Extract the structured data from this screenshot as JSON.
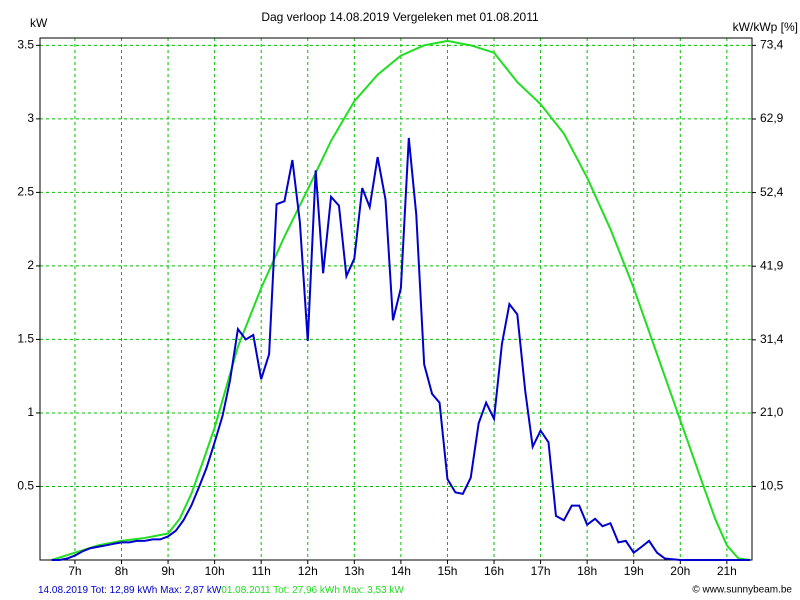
{
  "chart_data": {
    "type": "line",
    "title": "Dag  verloop 14.08.2019   Vergeleken met 01.08.2011",
    "ylabel": "kW",
    "y2label": "kW/kWp [%]",
    "credit": "© www.sunnybeam.be",
    "xlim": [
      6.25,
      21.54
    ],
    "xticks": [
      {
        "value": 7,
        "label": "7h"
      },
      {
        "value": 8,
        "label": "8h"
      },
      {
        "value": 9,
        "label": "9h"
      },
      {
        "value": 10,
        "label": "10h"
      },
      {
        "value": 11,
        "label": "11h"
      },
      {
        "value": 12,
        "label": "12h"
      },
      {
        "value": 13,
        "label": "13h"
      },
      {
        "value": 14,
        "label": "14h"
      },
      {
        "value": 15,
        "label": "15h"
      },
      {
        "value": 16,
        "label": "16h"
      },
      {
        "value": 17,
        "label": "17h"
      },
      {
        "value": 18,
        "label": "18h"
      },
      {
        "value": 19,
        "label": "19h"
      },
      {
        "value": 20,
        "label": "20h"
      },
      {
        "value": 21,
        "label": "21h"
      }
    ],
    "ylim": [
      0,
      3.55
    ],
    "yticks": [
      0.5,
      1,
      1.5,
      2,
      2.5,
      3,
      3.5
    ],
    "y2lim": [
      0,
      74.45
    ],
    "y2ticks": [
      {
        "value": 10.5,
        "label": "10,5"
      },
      {
        "value": 21.0,
        "label": "21,0"
      },
      {
        "value": 31.4,
        "label": "31,4"
      },
      {
        "value": 41.9,
        "label": "41,9"
      },
      {
        "value": 52.4,
        "label": "52,4"
      },
      {
        "value": 62.9,
        "label": "62,9"
      },
      {
        "value": 73.4,
        "label": "73,4"
      }
    ],
    "grid": true,
    "series": [
      {
        "name": "14.08.2019",
        "summary": " Tot: 12,89 kWh Max: 2,87 kW",
        "color": "#0000cc",
        "x": [
          6.5,
          6.67,
          6.83,
          7,
          7.17,
          7.33,
          7.5,
          7.67,
          7.83,
          8,
          8.17,
          8.33,
          8.5,
          8.67,
          8.83,
          9,
          9.17,
          9.33,
          9.5,
          9.67,
          9.83,
          10,
          10.17,
          10.33,
          10.5,
          10.67,
          10.83,
          11,
          11.17,
          11.33,
          11.5,
          11.67,
          11.83,
          12,
          12.17,
          12.33,
          12.5,
          12.67,
          12.83,
          13,
          13.17,
          13.33,
          13.5,
          13.67,
          13.83,
          14,
          14.17,
          14.33,
          14.5,
          14.67,
          14.83,
          15,
          15.17,
          15.33,
          15.5,
          15.67,
          15.83,
          16,
          16.17,
          16.33,
          16.5,
          16.67,
          16.83,
          17,
          17.17,
          17.33,
          17.5,
          17.67,
          17.83,
          18,
          18.17,
          18.33,
          18.5,
          18.67,
          18.83,
          19,
          19.17,
          19.33,
          19.5,
          19.67,
          20,
          21.5
        ],
        "values": [
          0,
          0,
          0.01,
          0.03,
          0.06,
          0.08,
          0.09,
          0.1,
          0.11,
          0.12,
          0.12,
          0.13,
          0.13,
          0.14,
          0.14,
          0.16,
          0.2,
          0.27,
          0.37,
          0.5,
          0.63,
          0.8,
          0.98,
          1.22,
          1.57,
          1.5,
          1.53,
          1.23,
          1.4,
          2.42,
          2.44,
          2.72,
          2.3,
          1.49,
          2.65,
          1.95,
          2.47,
          2.41,
          1.93,
          2.05,
          2.53,
          2.4,
          2.74,
          2.45,
          1.63,
          1.85,
          2.87,
          2.35,
          1.33,
          1.13,
          1.07,
          0.55,
          0.46,
          0.45,
          0.56,
          0.93,
          1.07,
          0.96,
          1.47,
          1.74,
          1.67,
          1.15,
          0.77,
          0.88,
          0.8,
          0.3,
          0.27,
          0.37,
          0.37,
          0.24,
          0.28,
          0.23,
          0.25,
          0.12,
          0.13,
          0.05,
          0.09,
          0.13,
          0.05,
          0.01,
          0,
          0
        ]
      },
      {
        "name": "01.08.2011",
        "summary": " Tot: 27,96 kWh Max: 3,53 kW",
        "color": "#22dd22",
        "x": [
          6.5,
          7,
          7.5,
          8,
          8.5,
          9,
          9.25,
          9.5,
          9.75,
          10,
          10.5,
          11,
          11.5,
          12,
          12.5,
          13,
          13.5,
          14,
          14.5,
          15,
          15.5,
          16,
          16.5,
          17,
          17.5,
          18,
          18.5,
          19,
          19.5,
          20,
          20.5,
          20.75,
          21,
          21.25,
          21.5
        ],
        "values": [
          0,
          0.05,
          0.1,
          0.13,
          0.15,
          0.18,
          0.28,
          0.45,
          0.67,
          0.9,
          1.45,
          1.85,
          2.2,
          2.52,
          2.85,
          3.12,
          3.3,
          3.43,
          3.5,
          3.53,
          3.5,
          3.45,
          3.25,
          3.1,
          2.9,
          2.6,
          2.25,
          1.85,
          1.4,
          0.95,
          0.5,
          0.28,
          0.1,
          0.01,
          0
        ]
      }
    ]
  }
}
